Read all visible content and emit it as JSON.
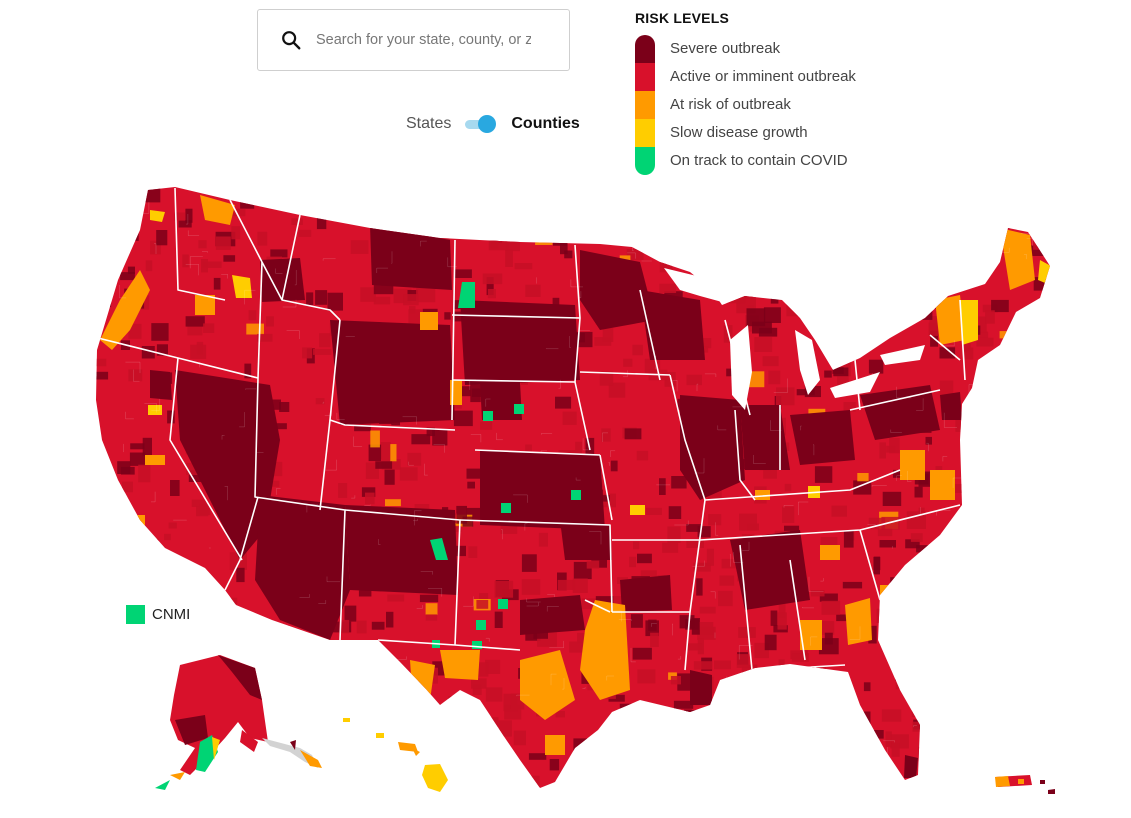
{
  "search": {
    "placeholder": "Search for your state, county, or zi"
  },
  "toggle": {
    "left_label": "States",
    "right_label": "Counties",
    "selected": "Counties"
  },
  "legend": {
    "title": "RISK LEVELS",
    "items": [
      {
        "label": "Severe outbreak",
        "color": "#7b0019"
      },
      {
        "label": "Active or imminent outbreak",
        "color": "#d8112b"
      },
      {
        "label": "At risk of outbreak",
        "color": "#ff9a00"
      },
      {
        "label": "Slow disease growth",
        "color": "#ffcd00"
      },
      {
        "label": "On track to contain COVID",
        "color": "#00d474"
      }
    ]
  },
  "territory": {
    "label": "CNMI",
    "color": "#00d474"
  },
  "icons": {
    "search": "search-icon"
  }
}
